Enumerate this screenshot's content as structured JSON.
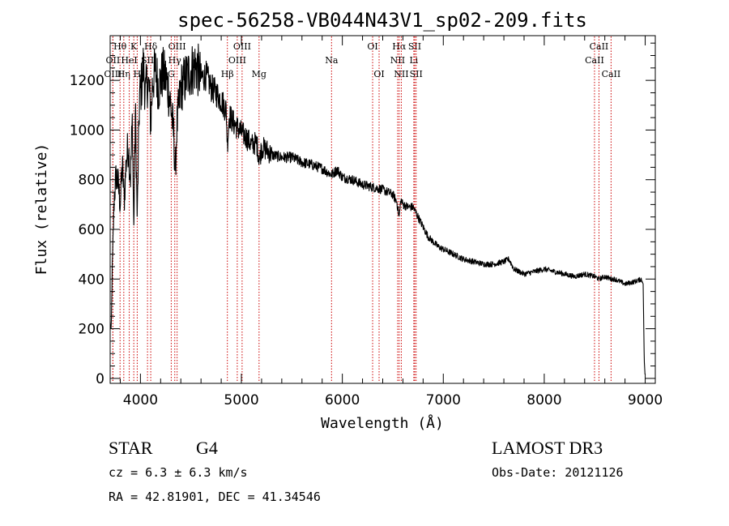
{
  "chart_data": {
    "type": "line",
    "title": "spec-56258-VB044N43V1_sp02-209.fits",
    "xlabel": "Wavelength (Å)",
    "ylabel": "Flux (relative)",
    "xlim": [
      3700,
      9100
    ],
    "ylim": [
      -20,
      1380
    ],
    "x_ticks": [
      4000,
      5000,
      6000,
      7000,
      8000,
      9000
    ],
    "x_tick_labels": [
      "4000",
      "5000",
      "6000",
      "7000",
      "8000",
      "9000"
    ],
    "y_ticks": [
      0,
      200,
      400,
      600,
      800,
      1000,
      1200
    ],
    "y_tick_labels": [
      "0",
      "200",
      "400",
      "600",
      "800",
      "1000",
      "1200"
    ],
    "grid": false,
    "series": [
      {
        "name": "spectrum",
        "x": [
          3700,
          3710,
          3720,
          3740,
          3760,
          3780,
          3800,
          3820,
          3840,
          3860,
          3880,
          3900,
          3920,
          3934,
          3950,
          3968,
          3990,
          4010,
          4030,
          4050,
          4070,
          4090,
          4102,
          4120,
          4150,
          4180,
          4220,
          4260,
          4300,
          4330,
          4345,
          4360,
          4400,
          4450,
          4500,
          4550,
          4600,
          4650,
          4700,
          4750,
          4800,
          4850,
          4861,
          4880,
          4920,
          4960,
          5000,
          5050,
          5100,
          5150,
          5180,
          5200,
          5250,
          5300,
          5400,
          5500,
          5600,
          5700,
          5800,
          5893,
          5950,
          6000,
          6100,
          6200,
          6300,
          6400,
          6500,
          6540,
          6563,
          6580,
          6600,
          6650,
          6700,
          6750,
          6800,
          6850,
          6900,
          6950,
          7000,
          7050,
          7100,
          7150,
          7200,
          7300,
          7400,
          7500,
          7600,
          7650,
          7700,
          7800,
          7900,
          8000,
          8100,
          8200,
          8300,
          8400,
          8500,
          8542,
          8600,
          8662,
          8700,
          8800,
          8900,
          8960,
          8980,
          8990,
          9000
        ],
        "values": [
          220,
          180,
          420,
          730,
          820,
          780,
          700,
          860,
          720,
          880,
          940,
          800,
          1040,
          600,
          1080,
          640,
          1130,
          1180,
          1260,
          1140,
          1200,
          1150,
          1020,
          1200,
          1240,
          1170,
          1230,
          1200,
          1100,
          980,
          820,
          1010,
          1170,
          1210,
          1240,
          1260,
          1210,
          1220,
          1170,
          1150,
          1120,
          1080,
          940,
          1060,
          1030,
          1010,
          990,
          970,
          940,
          950,
          880,
          930,
          920,
          900,
          890,
          890,
          870,
          860,
          845,
          820,
          840,
          810,
          800,
          780,
          770,
          760,
          740,
          710,
          650,
          720,
          700,
          690,
          690,
          650,
          610,
          570,
          550,
          530,
          520,
          510,
          500,
          490,
          480,
          470,
          460,
          460,
          470,
          480,
          440,
          420,
          430,
          440,
          430,
          420,
          410,
          420,
          410,
          400,
          410,
          400,
          400,
          380,
          390,
          400,
          380,
          80,
          0
        ]
      }
    ],
    "line_markers": [
      {
        "label": "Hθ",
        "x": 3798,
        "row": 1
      },
      {
        "label": "OII",
        "x": 3727,
        "row": 2
      },
      {
        "label": "OIII",
        "x": 3727,
        "row": 3
      },
      {
        "label": "Hη",
        "x": 3835,
        "row": 3
      },
      {
        "label": "HeI",
        "x": 3889,
        "row": 2
      },
      {
        "label": "K",
        "x": 3934,
        "row": 1
      },
      {
        "label": "SII",
        "x": 4070,
        "row": 2
      },
      {
        "label": "H",
        "x": 3968,
        "row": 3
      },
      {
        "label": "Hδ",
        "x": 4102,
        "row": 1
      },
      {
        "label": "OIII",
        "x": 4363,
        "row": 1
      },
      {
        "label": "Hγ",
        "x": 4340,
        "row": 2
      },
      {
        "label": "G",
        "x": 4305,
        "row": 3
      },
      {
        "label": "OIII",
        "x": 5007,
        "row": 1
      },
      {
        "label": "OIII",
        "x": 4959,
        "row": 2
      },
      {
        "label": "Hβ",
        "x": 4861,
        "row": 3
      },
      {
        "label": "Mg",
        "x": 5175,
        "row": 3
      },
      {
        "label": "Na",
        "x": 5893,
        "row": 2
      },
      {
        "label": "OI",
        "x": 6300,
        "row": 1
      },
      {
        "label": "OI",
        "x": 6364,
        "row": 3
      },
      {
        "label": "Hα",
        "x": 6563,
        "row": 1
      },
      {
        "label": "NII",
        "x": 6548,
        "row": 2
      },
      {
        "label": "NII",
        "x": 6584,
        "row": 3
      },
      {
        "label": "SII",
        "x": 6717,
        "row": 1
      },
      {
        "label": "Li",
        "x": 6708,
        "row": 2
      },
      {
        "label": "SII",
        "x": 6731,
        "row": 3
      },
      {
        "label": "CaII",
        "x": 8542,
        "row": 1
      },
      {
        "label": "CaII",
        "x": 8498,
        "row": 2
      },
      {
        "label": "CaII",
        "x": 8662,
        "row": 3
      }
    ]
  },
  "info": {
    "class_label": "STAR",
    "subclass": "G4",
    "redshift_text": "cz = 6.3 ± 6.3 km/s",
    "coords_text": "RA =  42.81901, DEC =  41.34546",
    "survey": "LAMOST DR3",
    "obs_date_text": "Obs-Date: 20121126"
  }
}
